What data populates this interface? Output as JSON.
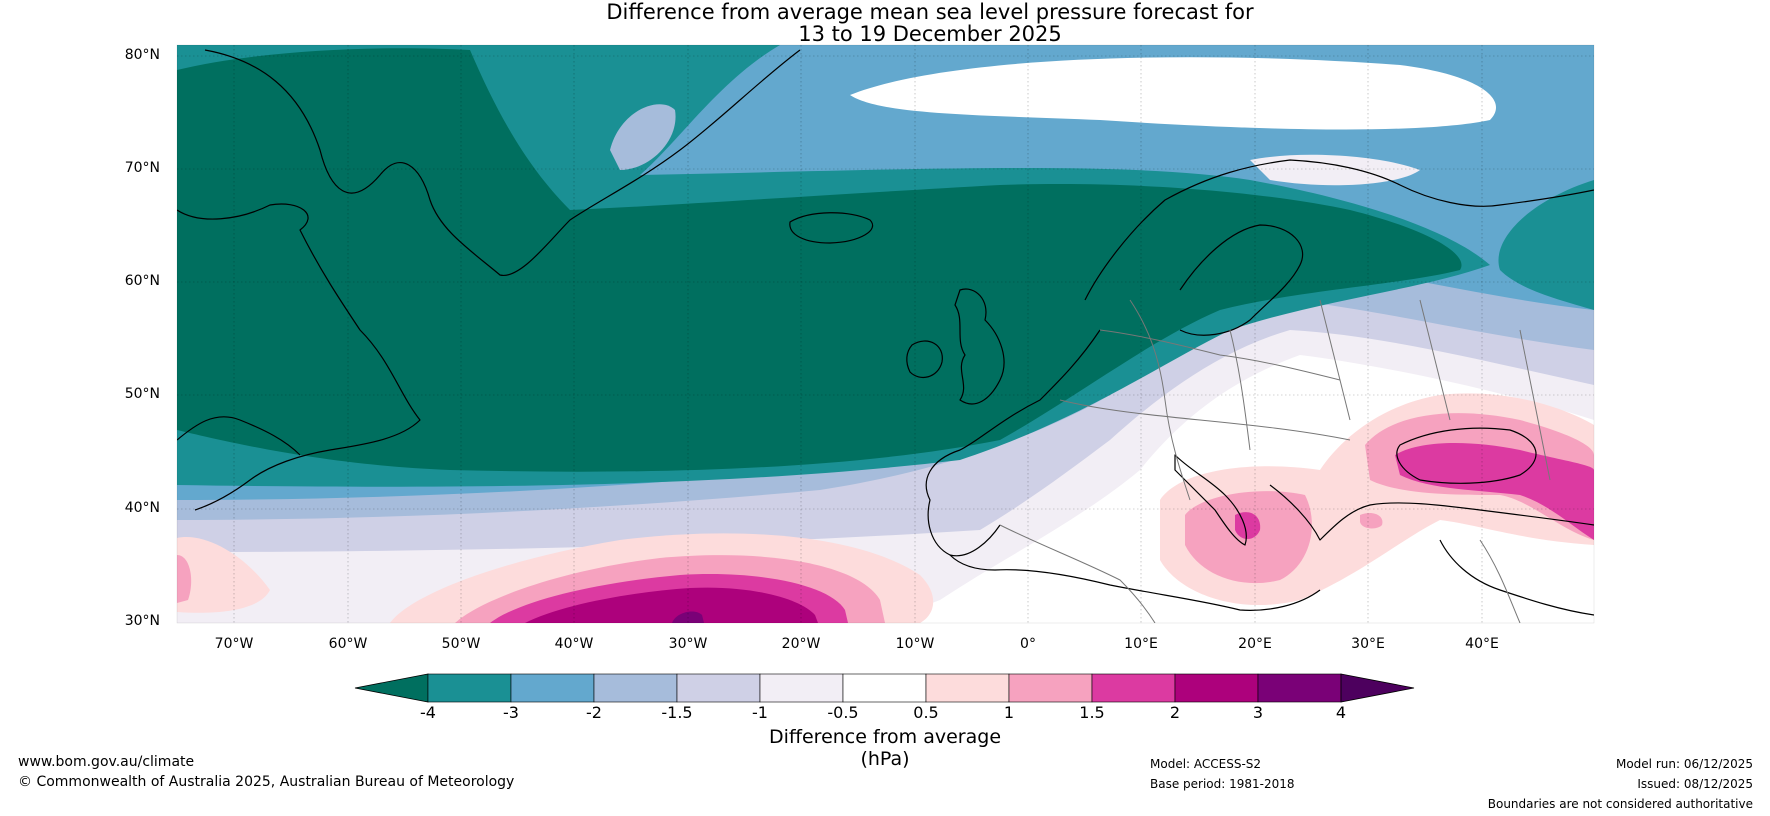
{
  "title": {
    "line1": "Difference from average mean sea level pressure forecast for",
    "line2": "13 to 19 December 2025"
  },
  "lat_labels": [
    "80°N",
    "70°N",
    "60°N",
    "50°N",
    "40°N",
    "30°N"
  ],
  "lon_labels": [
    "70°W",
    "60°W",
    "50°W",
    "40°W",
    "30°W",
    "20°W",
    "10°W",
    "0°",
    "10°E",
    "20°E",
    "30°E",
    "40°E"
  ],
  "colorbar": {
    "ticks": [
      "-4",
      "-3",
      "-2",
      "-1.5",
      "-1",
      "-0.5",
      "0.5",
      "1",
      "1.5",
      "2",
      "3",
      "4"
    ],
    "colors": [
      "#006f5f",
      "#1a9094",
      "#63a8ce",
      "#a6bcdb",
      "#cfd0e6",
      "#f2eef5",
      "#ffffff",
      "#fddcdc",
      "#f6a2bf",
      "#dc3aa1",
      "#ad017c",
      "#7a0177",
      "#4d005e"
    ],
    "title": "Difference from average (hPa)"
  },
  "footer": {
    "website": "www.bom.gov.au/climate",
    "copyright": "© Commonwealth of Australia 2025, Australian Bureau of Meteorology",
    "model": "Model: ACCESS-S2",
    "base_period": "Base period: 1981-2018",
    "model_run": "Model run: 06/12/2025",
    "issued": "Issued: 08/12/2025",
    "disclaimer": "Boundaries are not considered authoritative"
  }
}
